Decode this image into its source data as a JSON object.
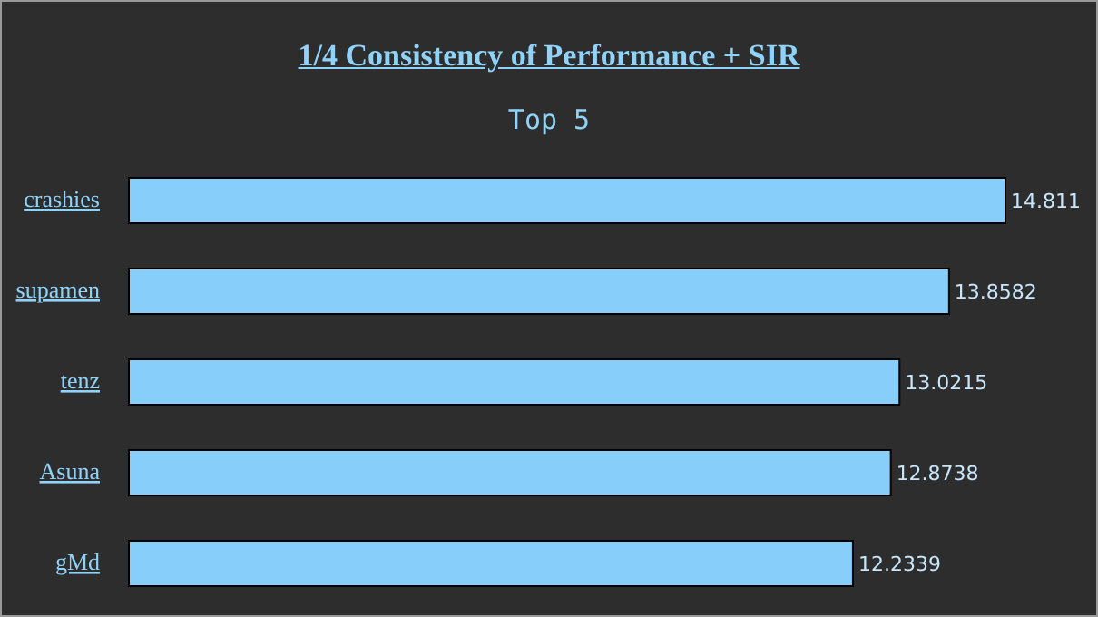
{
  "chart_data": {
    "type": "bar",
    "orientation": "horizontal",
    "title": "1/4 Consistency of Performance + SIR",
    "subtitle": "Top 5",
    "categories": [
      "crashies",
      "supamen",
      "tenz",
      "Asuna",
      "gMd"
    ],
    "values": [
      14.811,
      13.8582,
      13.0215,
      12.8738,
      12.2339
    ],
    "color": "#87cefa",
    "data_labels": true,
    "grid": false,
    "legend": false
  }
}
